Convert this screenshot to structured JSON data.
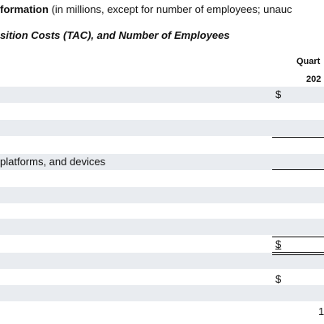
{
  "header": {
    "title_bold": "formation",
    "title_rest": "(in millions, except for number of employees; unauc"
  },
  "subtitle": "sition Costs (TAC), and Number of Employees",
  "column": {
    "header": "Quart",
    "year": "202"
  },
  "table": {
    "row_label": "platforms, and devices",
    "currency": [
      "$",
      "$",
      "$"
    ]
  },
  "footer": {
    "page": "1"
  }
}
